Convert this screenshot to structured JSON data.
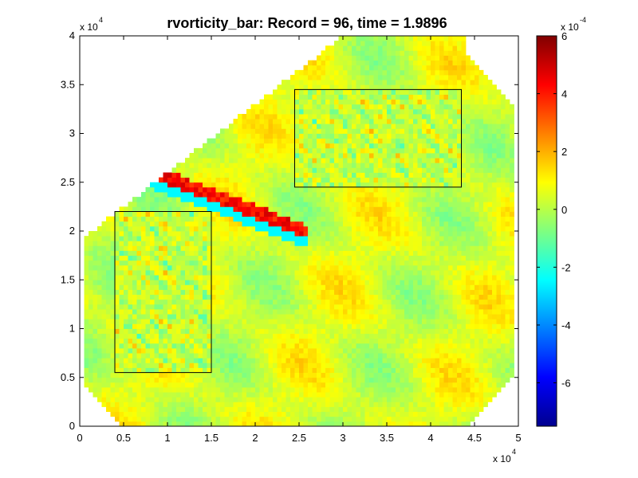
{
  "chart_data": {
    "type": "heatmap",
    "title": "rvorticity_bar:    Record = 96,    time = 1.9896",
    "xlim": [
      0,
      50000
    ],
    "ylim": [
      0,
      40000
    ],
    "x_ticks": [
      "0",
      "0.5",
      "1",
      "1.5",
      "2",
      "2.5",
      "3",
      "3.5",
      "4",
      "4.5",
      "5"
    ],
    "y_ticks": [
      "0",
      "0.5",
      "1",
      "1.5",
      "2",
      "2.5",
      "3",
      "3.5",
      "4"
    ],
    "x_multiplier": "x 10",
    "x_multiplier_exp": "4",
    "y_multiplier": "x 10",
    "y_multiplier_exp": "4",
    "colorbar": {
      "range": [
        -0.00075,
        0.0006
      ],
      "ticks": [
        "6",
        "4",
        "2",
        "0",
        "-2",
        "-4",
        "-6"
      ],
      "tick_values": [
        6,
        4,
        2,
        0,
        -2,
        -4,
        -6
      ],
      "multiplier": "x 10",
      "multiplier_exp": "-4",
      "colormap": "jet"
    },
    "nested_domains": [
      {
        "x": [
          4000,
          15000
        ],
        "y": [
          5500,
          22000
        ]
      },
      {
        "x": [
          24500,
          43500
        ],
        "y": [
          24500,
          34500
        ]
      }
    ],
    "grid": false
  }
}
